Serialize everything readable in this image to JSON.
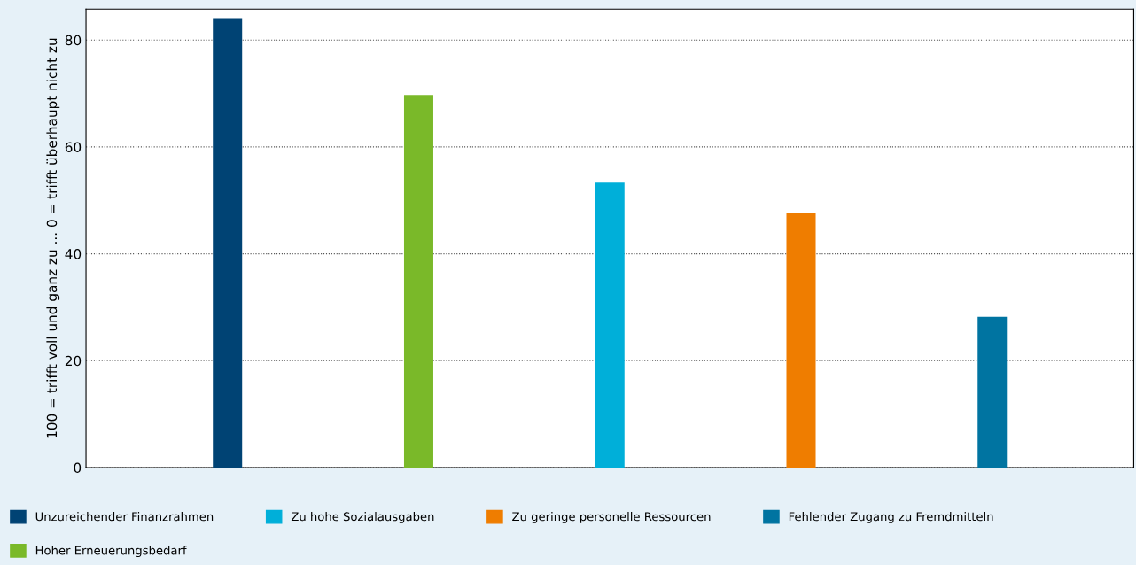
{
  "chart_data": {
    "type": "bar",
    "ylabel": "100 = trifft voll und ganz zu ... 0 = trifft überhaupt nicht zu",
    "categories": [
      null,
      null,
      null,
      null,
      null
    ],
    "series": [
      {
        "name": "Unzureichender Finanzrahmen",
        "color": "#004374",
        "values": [
          84.1,
          null,
          null,
          null,
          null
        ]
      },
      {
        "name": "Hoher Erneuerungsbedarf",
        "color": "#7ab929",
        "values": [
          null,
          69.7,
          null,
          null,
          null
        ]
      },
      {
        "name": "Zu hohe Sozialausgaben",
        "color": "#00afd9",
        "values": [
          null,
          null,
          53.3,
          null,
          null
        ]
      },
      {
        "name": "Zu geringe personelle Ressourcen",
        "color": "#ef7d00",
        "values": [
          null,
          null,
          null,
          47.7,
          null
        ]
      },
      {
        "name": "Fehlender Zugang zu Fremdmitteln",
        "color": "#0074a1",
        "values": [
          null,
          null,
          null,
          null,
          28.2
        ]
      }
    ],
    "ylim": [
      0,
      85.8
    ],
    "yticks": [
      0,
      20,
      40,
      60,
      80
    ],
    "grid": "y",
    "legend": "bottom"
  }
}
